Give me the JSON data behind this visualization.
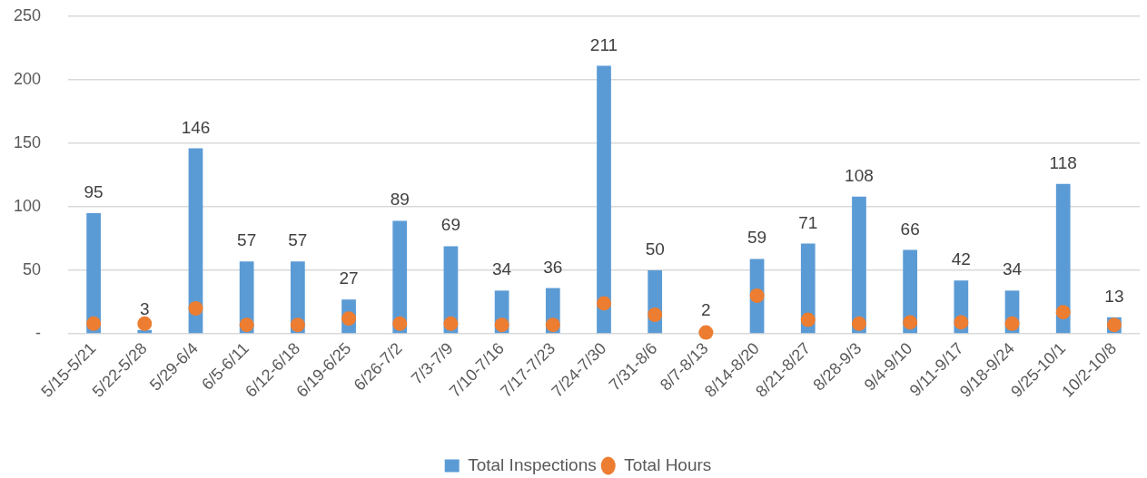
{
  "chart_data": {
    "type": "bar",
    "categories": [
      "5/15-5/21",
      "5/22-5/28",
      "5/29-6/4",
      "6/5-6/11",
      "6/12-6/18",
      "6/19-6/25",
      "6/26-7/2",
      "7/3-7/9",
      "7/10-7/16",
      "7/17-7/23",
      "7/24-7/30",
      "7/31-8/6",
      "8/7-8/13",
      "8/14-8/20",
      "8/21-8/27",
      "8/28-9/3",
      "9/4-9/10",
      "9/11-9/17",
      "9/18-9/24",
      "9/25-10/1",
      "10/2-10/8"
    ],
    "series": [
      {
        "name": "Total Inspections",
        "color": "#5b9bd5",
        "values": [
          95,
          3,
          146,
          57,
          57,
          27,
          89,
          69,
          34,
          36,
          211,
          50,
          2,
          59,
          71,
          108,
          66,
          42,
          34,
          118,
          13
        ],
        "value_labels": [
          "95",
          "3",
          "146",
          "57",
          "57",
          "27",
          "89",
          "69",
          "34",
          "36",
          "211",
          "50",
          "2",
          "59",
          "71",
          "108",
          "66",
          "42",
          "34",
          "118",
          "13"
        ]
      },
      {
        "name": "Total Hours",
        "type": "scatter",
        "marker": "circle",
        "color": "#ed7d31",
        "values": [
          8,
          8,
          20,
          7,
          7,
          12,
          8,
          8,
          7,
          7,
          24,
          15,
          1,
          30,
          11,
          8,
          9,
          9,
          8,
          17,
          7
        ]
      }
    ],
    "ylim": [
      0,
      250
    ],
    "yticks": [
      {
        "value": 0,
        "label": "-"
      },
      50,
      100,
      150,
      200,
      250
    ],
    "grid": "y",
    "legend": "bottom"
  }
}
